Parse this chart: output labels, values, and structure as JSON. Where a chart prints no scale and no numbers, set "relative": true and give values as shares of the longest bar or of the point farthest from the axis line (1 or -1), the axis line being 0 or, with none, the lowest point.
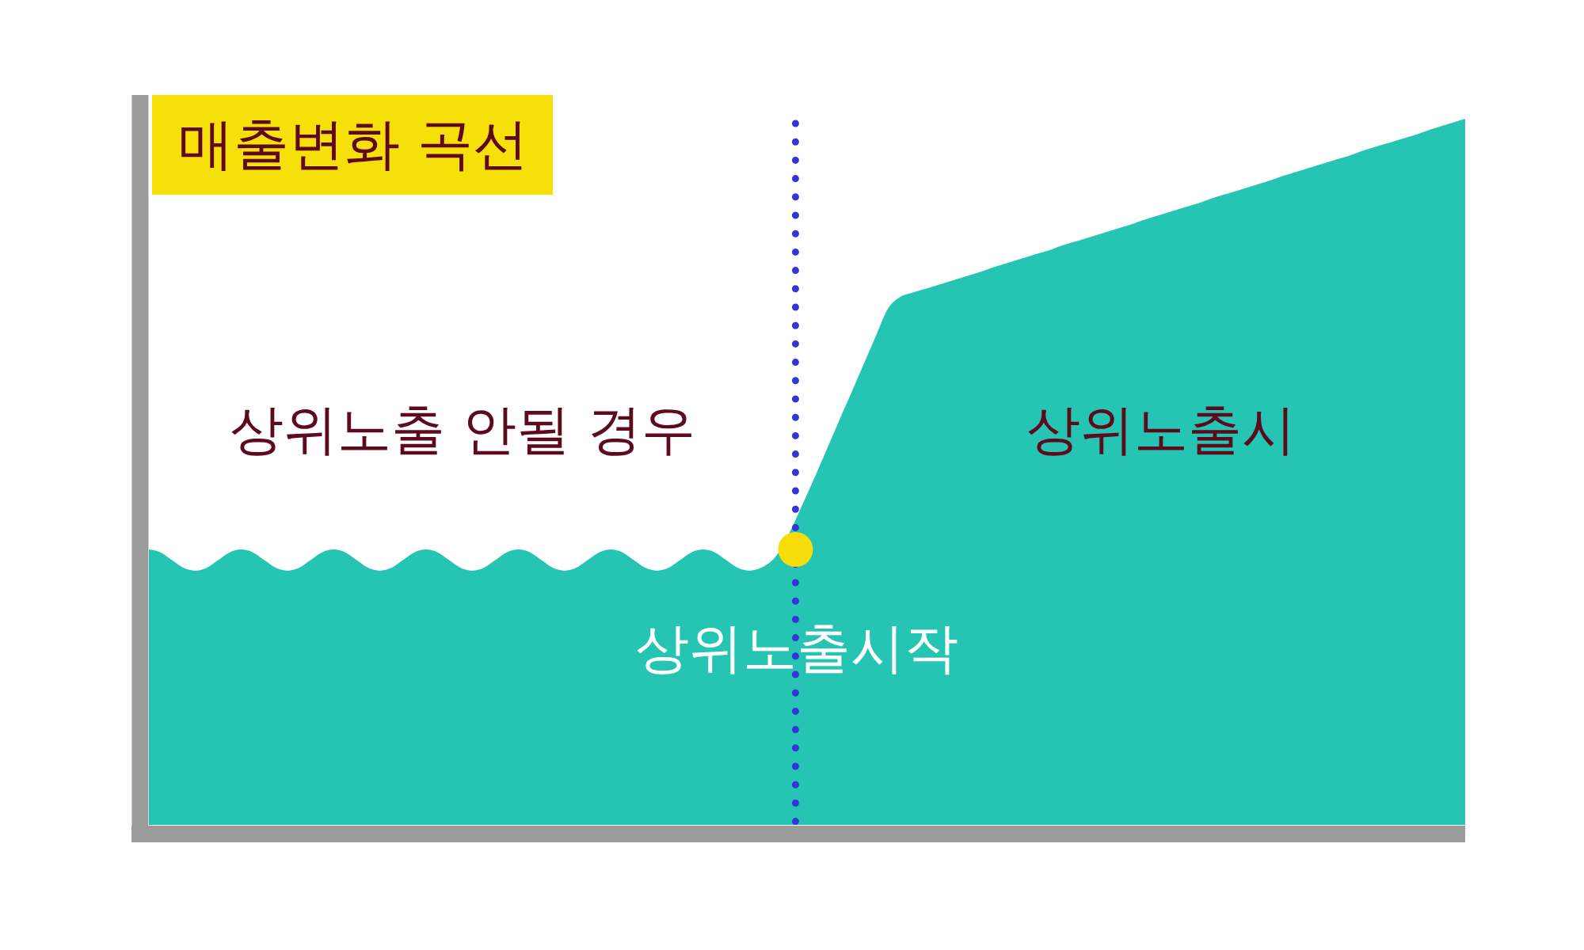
{
  "chart_data": {
    "type": "area",
    "title": "매출변화 곡선",
    "relative": true,
    "categories": [
      null,
      null,
      null,
      null,
      null,
      null,
      null,
      null,
      null,
      null,
      null,
      null,
      null,
      null,
      null,
      null,
      null,
      null,
      null,
      null,
      null,
      null,
      null,
      null,
      null,
      null,
      null,
      null,
      null,
      null,
      null,
      null,
      null,
      null,
      null,
      null,
      null,
      null,
      null,
      null,
      null,
      null,
      null,
      null,
      null,
      null,
      null,
      null,
      null,
      null,
      null,
      null,
      null,
      null,
      null,
      null,
      null,
      null,
      null,
      null,
      null,
      null,
      null,
      null,
      null,
      null,
      null,
      null,
      null,
      null,
      null,
      null,
      null,
      null,
      null,
      null,
      null,
      null,
      null,
      null,
      null,
      null,
      null,
      null,
      null,
      null,
      null,
      null,
      null,
      null,
      null,
      null,
      null,
      null,
      null,
      null,
      null,
      null,
      null,
      null,
      null,
      null,
      null,
      null,
      null,
      null,
      null,
      null,
      null,
      null,
      null,
      null,
      null,
      null,
      null
    ],
    "series": [
      {
        "color": "#26c4b3",
        "values": [
          0.39,
          0.386,
          0.375,
          0.364,
          0.36,
          0.364,
          0.375,
          0.386,
          0.39,
          0.386,
          0.375,
          0.364,
          0.36,
          0.364,
          0.375,
          0.386,
          0.39,
          0.386,
          0.375,
          0.364,
          0.36,
          0.364,
          0.375,
          0.386,
          0.39,
          0.386,
          0.375,
          0.364,
          0.36,
          0.364,
          0.375,
          0.386,
          0.39,
          0.386,
          0.375,
          0.364,
          0.36,
          0.364,
          0.375,
          0.386,
          0.39,
          0.386,
          0.375,
          0.364,
          0.36,
          0.364,
          0.375,
          0.386,
          0.39,
          0.386,
          0.375,
          0.364,
          0.36,
          0.364,
          0.375,
          null,
          null,
          0.468,
          0.505,
          0.543,
          0.581,
          0.618,
          0.656,
          0.694,
          0.731,
          0.747,
          0.753,
          0.758,
          0.763,
          0.768,
          0.773,
          0.778,
          0.783,
          0.789,
          0.794,
          0.799,
          0.804,
          0.809,
          0.814,
          0.82,
          0.825,
          0.83,
          0.835,
          0.84,
          0.845,
          0.85,
          0.856,
          0.861,
          0.866,
          0.871,
          0.876,
          0.881,
          0.887,
          0.892,
          0.897,
          0.902,
          0.907,
          0.912,
          0.918,
          0.923,
          0.928,
          0.933,
          0.938,
          0.943,
          0.948,
          0.954,
          0.959,
          0.964,
          0.969,
          0.974,
          0.979,
          0.985,
          0.99,
          0.995,
          1
        ]
      },
      {
        "type": "line",
        "color": "#f7dd0a",
        "marker": "circle",
        "values": [
          null,
          null,
          null,
          null,
          null,
          null,
          null,
          null,
          null,
          null,
          null,
          null,
          null,
          null,
          null,
          null,
          null,
          null,
          null,
          null,
          null,
          null,
          null,
          null,
          null,
          null,
          null,
          null,
          null,
          null,
          null,
          null,
          null,
          null,
          null,
          null,
          null,
          null,
          null,
          null,
          null,
          null,
          null,
          null,
          null,
          null,
          null,
          null,
          null,
          null,
          null,
          null,
          null,
          null,
          null,
          null,
          0.39,
          null,
          null,
          null,
          null,
          null,
          null,
          null,
          null,
          null,
          null,
          null,
          null,
          null,
          null,
          null,
          null,
          null,
          null,
          null,
          null,
          null,
          null,
          null,
          null,
          null,
          null,
          null,
          null,
          null,
          null,
          null,
          null,
          null,
          null,
          null,
          null,
          null,
          null,
          null,
          null,
          null,
          null,
          null,
          null,
          null,
          null,
          null,
          null,
          null,
          null,
          null,
          null,
          null,
          null,
          null,
          null,
          null,
          null
        ]
      }
    ],
    "annotations": [
      "상위노출 안될 경우",
      "상위노출시",
      "상위노출시작"
    ]
  }
}
